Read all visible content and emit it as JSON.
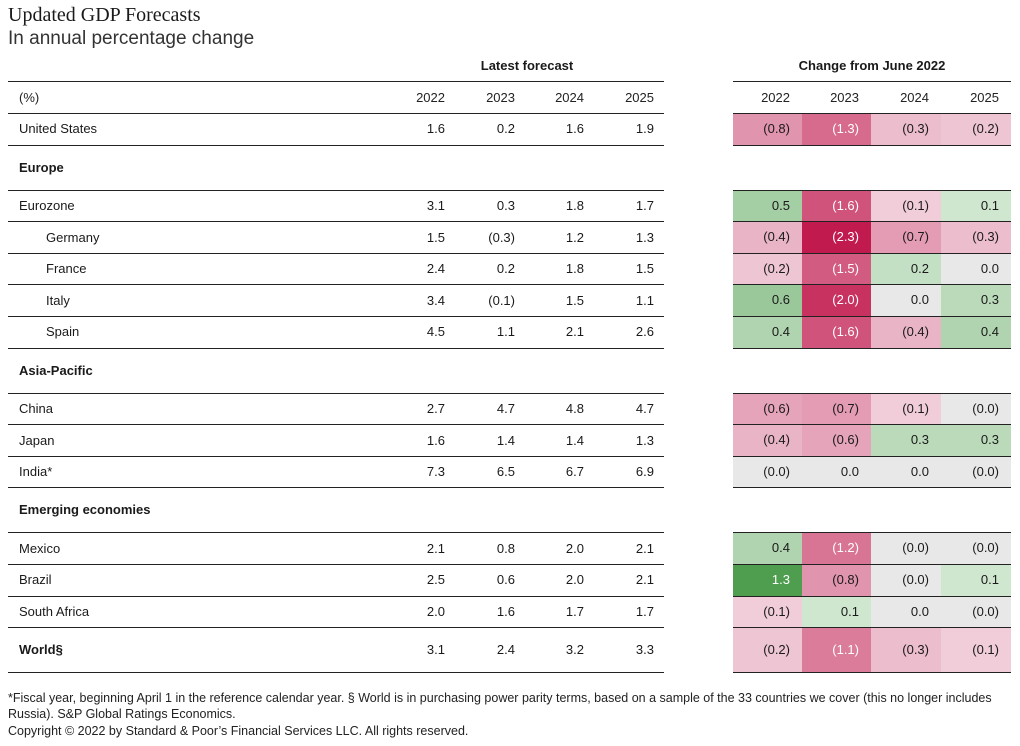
{
  "title": "Updated GDP Forecasts",
  "subtitle": "In annual percentage change",
  "footnote": "*Fiscal year, beginning April 1 in the reference calendar year. § World is in purchasing power parity terms, based on a sample of the 33 countries we cover (this no longer includes Russia). S&P Global Ratings Economics.",
  "copyright": "Copyright © 2022 by Standard & Poor’s Financial Services LLC. All rights reserved.",
  "chart_data": {
    "type": "table",
    "unit_label": "(%)",
    "group_latest": "Latest forecast",
    "group_change": "Change from June 2022",
    "years": [
      "2022",
      "2023",
      "2024",
      "2025"
    ],
    "rows": [
      {
        "kind": "row",
        "label": "United States",
        "latest": [
          "1.6",
          "0.2",
          "1.6",
          "1.9"
        ],
        "change": [
          "(0.8)",
          "(1.3)",
          "(0.3)",
          "(0.2)"
        ],
        "change_values": [
          -0.8,
          -1.3,
          -0.3,
          -0.2
        ]
      },
      {
        "kind": "section",
        "label": "Europe"
      },
      {
        "kind": "row",
        "label": "Eurozone",
        "latest": [
          "3.1",
          "0.3",
          "1.8",
          "1.7"
        ],
        "change": [
          "0.5",
          "(1.6)",
          "(0.1)",
          "0.1"
        ],
        "change_values": [
          0.5,
          -1.6,
          -0.1,
          0.1
        ]
      },
      {
        "kind": "row",
        "indent": true,
        "label": "Germany",
        "latest": [
          "1.5",
          "(0.3)",
          "1.2",
          "1.3"
        ],
        "change": [
          "(0.4)",
          "(2.3)",
          "(0.7)",
          "(0.3)"
        ],
        "change_values": [
          -0.4,
          -2.3,
          -0.7,
          -0.3
        ]
      },
      {
        "kind": "row",
        "indent": true,
        "label": "France",
        "latest": [
          "2.4",
          "0.2",
          "1.8",
          "1.5"
        ],
        "change": [
          "(0.2)",
          "(1.5)",
          "0.2",
          "0.0"
        ],
        "change_values": [
          -0.2,
          -1.5,
          0.2,
          0.0
        ]
      },
      {
        "kind": "row",
        "indent": true,
        "label": "Italy",
        "latest": [
          "3.4",
          "(0.1)",
          "1.5",
          "1.1"
        ],
        "change": [
          "0.6",
          "(2.0)",
          "0.0",
          "0.3"
        ],
        "change_values": [
          0.6,
          -2.0,
          0.0,
          0.3
        ]
      },
      {
        "kind": "row",
        "indent": true,
        "label": "Spain",
        "latest": [
          "4.5",
          "1.1",
          "2.1",
          "2.6"
        ],
        "change": [
          "0.4",
          "(1.6)",
          "(0.4)",
          "0.4"
        ],
        "change_values": [
          0.4,
          -1.6,
          -0.4,
          0.4
        ]
      },
      {
        "kind": "section",
        "label": "Asia-Pacific"
      },
      {
        "kind": "row",
        "label": "China",
        "latest": [
          "2.7",
          "4.7",
          "4.8",
          "4.7"
        ],
        "change": [
          "(0.6)",
          "(0.7)",
          "(0.1)",
          "(0.0)"
        ],
        "change_values": [
          -0.6,
          -0.7,
          -0.1,
          -0.0
        ]
      },
      {
        "kind": "row",
        "label": "Japan",
        "latest": [
          "1.6",
          "1.4",
          "1.4",
          "1.3"
        ],
        "change": [
          "(0.4)",
          "(0.6)",
          "0.3",
          "0.3"
        ],
        "change_values": [
          -0.4,
          -0.6,
          0.3,
          0.3
        ]
      },
      {
        "kind": "row",
        "label": "India*",
        "latest": [
          "7.3",
          "6.5",
          "6.7",
          "6.9"
        ],
        "change": [
          "(0.0)",
          "0.0",
          "0.0",
          "(0.0)"
        ],
        "change_values": [
          -0.0,
          0.0,
          0.0,
          -0.0
        ]
      },
      {
        "kind": "section",
        "label": "Emerging economies"
      },
      {
        "kind": "row",
        "label": "Mexico",
        "latest": [
          "2.1",
          "0.8",
          "2.0",
          "2.1"
        ],
        "change": [
          "0.4",
          "(1.2)",
          "(0.0)",
          "(0.0)"
        ],
        "change_values": [
          0.4,
          -1.2,
          -0.0,
          -0.0
        ]
      },
      {
        "kind": "row",
        "label": "Brazil",
        "latest": [
          "2.5",
          "0.6",
          "2.0",
          "2.1"
        ],
        "change": [
          "1.3",
          "(0.8)",
          "(0.0)",
          "0.1"
        ],
        "change_values": [
          1.3,
          -0.8,
          -0.0,
          0.1
        ]
      },
      {
        "kind": "row",
        "label": "South Africa",
        "latest": [
          "2.0",
          "1.6",
          "1.7",
          "1.7"
        ],
        "change": [
          "(0.1)",
          "0.1",
          "0.0",
          "(0.0)"
        ],
        "change_values": [
          -0.1,
          0.1,
          0.0,
          -0.0
        ]
      },
      {
        "kind": "row",
        "bold": true,
        "label": "World§",
        "latest": [
          "3.1",
          "2.4",
          "3.2",
          "3.3"
        ],
        "change": [
          "(0.2)",
          "(1.1)",
          "(0.3)",
          "(0.1)"
        ],
        "change_values": [
          -0.2,
          -1.1,
          -0.3,
          -0.1
        ]
      }
    ],
    "colors": {
      "neutral": "#e8e8e8",
      "positive_light": "#cfe6cf",
      "positive_strong": "#4f9e4f",
      "negative_light": "#f0cdd9",
      "negative_strong": "#c01a4e"
    }
  }
}
